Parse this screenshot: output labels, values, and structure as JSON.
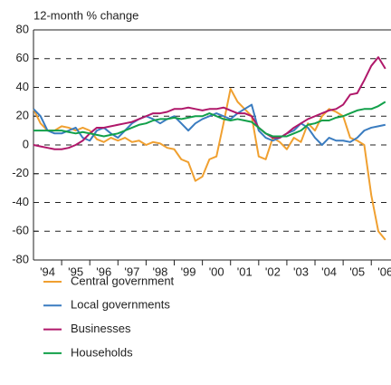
{
  "chart_data": {
    "type": "line",
    "title": "12-month % change",
    "x": [
      1994,
      1994.25,
      1994.5,
      1994.75,
      1995,
      1995.25,
      1995.5,
      1995.75,
      1996,
      1996.25,
      1996.5,
      1996.75,
      1997,
      1997.25,
      1997.5,
      1997.75,
      1998,
      1998.25,
      1998.5,
      1998.75,
      1999,
      1999.25,
      1999.5,
      1999.75,
      2000,
      2000.25,
      2000.5,
      2000.75,
      2001,
      2001.25,
      2001.5,
      2001.75,
      2002,
      2002.25,
      2002.5,
      2002.75,
      2003,
      2003.25,
      2003.5,
      2003.75,
      2004,
      2004.25,
      2004.5,
      2004.75,
      2005,
      2005.25,
      2005.5,
      2005.75,
      2006,
      2006.25,
      2006.5
    ],
    "series": [
      {
        "name": "Central government",
        "color": "#f0a030",
        "values": [
          25,
          15,
          10,
          10,
          13,
          12,
          10,
          12,
          10,
          4,
          2,
          5,
          3,
          5,
          2,
          3,
          0,
          2,
          1,
          -2,
          -3,
          -10,
          -12,
          -25,
          -22,
          -10,
          -8,
          15,
          39,
          30,
          25,
          20,
          -8,
          -10,
          5,
          2,
          -3,
          5,
          2,
          15,
          10,
          20,
          25,
          23,
          20,
          5,
          3,
          0,
          -35,
          -60,
          -66
        ]
      },
      {
        "name": "Local governments",
        "color": "#3a7cc0",
        "values": [
          25,
          20,
          10,
          8,
          8,
          10,
          12,
          5,
          3,
          10,
          12,
          8,
          5,
          10,
          15,
          18,
          20,
          18,
          15,
          18,
          20,
          15,
          10,
          15,
          18,
          20,
          22,
          20,
          18,
          22,
          25,
          28,
          10,
          5,
          3,
          5,
          8,
          10,
          15,
          12,
          5,
          0,
          5,
          3,
          3,
          2,
          5,
          10,
          12,
          13,
          14
        ]
      },
      {
        "name": "Businesses",
        "color": "#b0186a",
        "values": [
          0,
          -1,
          -2,
          -3,
          -3,
          -2,
          0,
          3,
          8,
          12,
          12,
          13,
          14,
          15,
          16,
          18,
          20,
          22,
          22,
          23,
          25,
          25,
          26,
          25,
          24,
          25,
          25,
          26,
          24,
          22,
          22,
          20,
          12,
          8,
          5,
          5,
          8,
          12,
          15,
          18,
          20,
          22,
          24,
          25,
          28,
          35,
          36,
          45,
          55,
          61,
          53
        ]
      },
      {
        "name": "Households",
        "color": "#12a04a",
        "values": [
          10,
          10,
          10,
          10,
          10,
          9,
          8,
          9,
          8,
          7,
          6,
          7,
          8,
          10,
          12,
          14,
          15,
          17,
          18,
          18,
          19,
          18,
          19,
          20,
          20,
          22,
          20,
          18,
          17,
          18,
          17,
          16,
          12,
          8,
          6,
          6,
          6,
          8,
          10,
          14,
          15,
          17,
          17,
          19,
          20,
          22,
          24,
          25,
          25,
          27,
          30
        ]
      }
    ],
    "xlim": [
      1994,
      2006.7
    ],
    "xticks": [
      {
        "value": 1994,
        "label": "'94"
      },
      {
        "value": 1995,
        "label": "'95"
      },
      {
        "value": 1996,
        "label": "'96"
      },
      {
        "value": 1997,
        "label": "'97"
      },
      {
        "value": 1998,
        "label": "'98"
      },
      {
        "value": 1999,
        "label": "'99"
      },
      {
        "value": 2000,
        "label": "'00"
      },
      {
        "value": 2001,
        "label": "'01"
      },
      {
        "value": 2002,
        "label": "'02"
      },
      {
        "value": 2003,
        "label": "'03"
      },
      {
        "value": 2004,
        "label": "'04"
      },
      {
        "value": 2005,
        "label": "'05"
      },
      {
        "value": 2006,
        "label": "'06"
      }
    ],
    "ylim": [
      -80,
      80
    ],
    "yticks": [
      80,
      60,
      40,
      20,
      0,
      -20,
      -40,
      -60,
      -80
    ],
    "grid": true
  }
}
